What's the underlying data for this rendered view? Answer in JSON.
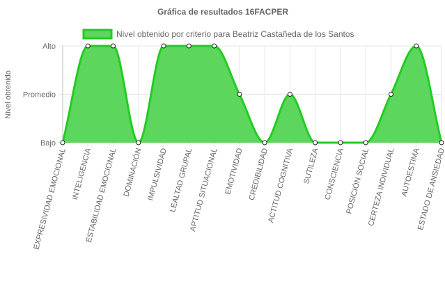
{
  "chart_data": {
    "type": "area",
    "title": "Gráfica de resultados 16FACPER",
    "ylabel": "Nivel obtenido",
    "xlabel": "",
    "y_levels": [
      "Bajo",
      "Promedio",
      "Alto"
    ],
    "ylim": [
      0,
      2
    ],
    "grid": true,
    "legend": "top-center",
    "categories": [
      "EXPRESIVIDAD EMOCIONAL",
      "INTELIGENCIA",
      "ESTABILIDAD EMOCIONAL",
      "DOMINACIÓN",
      "IMPULSIVIDAD",
      "LEALTAD GRUPAL",
      "APTITUD SITUACIONAL",
      "EMOTIVIDAD",
      "CREDIBILIDAD",
      "ACTITUD COGNITIVA",
      "SUTILEZA",
      "CONSCIENCIA",
      "POSICIÓN SOCIAL",
      "CERTEZA INDIVIDUAL",
      "AUTOESTIMA",
      "ESTADO DE ANSIEDAD"
    ],
    "series": [
      {
        "name": "Nivel obtenido por criterio para Beatriz Castañeda de los Santos",
        "values": [
          0,
          2,
          2,
          0,
          2,
          2,
          2,
          1,
          0,
          1,
          0,
          0,
          0,
          1,
          2,
          0
        ],
        "line_color": "#22cc22",
        "fill_color": "#5cd65c"
      }
    ]
  }
}
